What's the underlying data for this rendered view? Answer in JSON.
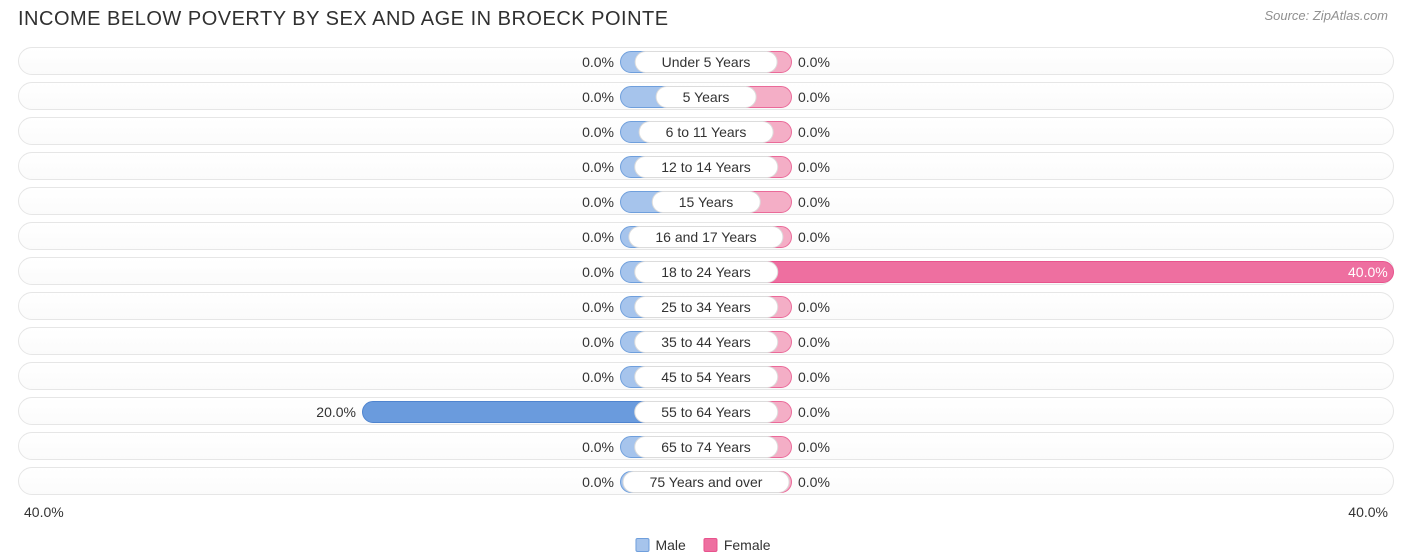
{
  "title": "INCOME BELOW POVERTY BY SEX AND AGE IN BROECK POINTE",
  "source": "Source: ZipAtlas.com",
  "chart": {
    "type": "diverging-bar",
    "axis_max_pct": 40.0,
    "axis_label_left": "40.0%",
    "axis_label_right": "40.0%",
    "min_bar_pct": 5.0,
    "colors": {
      "male_fill": "#a6c4ec",
      "male_border": "#6f9fdc",
      "female_fill": "#f4aec6",
      "female_border": "#ea6a99",
      "female_strong_fill": "#ee6fa0",
      "female_strong_border": "#e8538d",
      "male_strong_fill": "#6a9bdd",
      "male_strong_border": "#4f84cf",
      "track_border": "#e6e6e6",
      "text": "#333333",
      "title_text": "#303030",
      "source_text": "#909090",
      "inside_label": "#ffffff",
      "background": "#ffffff"
    },
    "left_series": "Male",
    "right_series": "Female",
    "categories": [
      {
        "label": "Under 5 Years",
        "male": 0.0,
        "female": 0.0
      },
      {
        "label": "5 Years",
        "male": 0.0,
        "female": 0.0
      },
      {
        "label": "6 to 11 Years",
        "male": 0.0,
        "female": 0.0
      },
      {
        "label": "12 to 14 Years",
        "male": 0.0,
        "female": 0.0
      },
      {
        "label": "15 Years",
        "male": 0.0,
        "female": 0.0
      },
      {
        "label": "16 and 17 Years",
        "male": 0.0,
        "female": 0.0
      },
      {
        "label": "18 to 24 Years",
        "male": 0.0,
        "female": 40.0
      },
      {
        "label": "25 to 34 Years",
        "male": 0.0,
        "female": 0.0
      },
      {
        "label": "35 to 44 Years",
        "male": 0.0,
        "female": 0.0
      },
      {
        "label": "45 to 54 Years",
        "male": 0.0,
        "female": 0.0
      },
      {
        "label": "55 to 64 Years",
        "male": 20.0,
        "female": 0.0
      },
      {
        "label": "65 to 74 Years",
        "male": 0.0,
        "female": 0.0
      },
      {
        "label": "75 Years and over",
        "male": 0.0,
        "female": 0.0
      }
    ],
    "legend": {
      "male": "Male",
      "female": "Female"
    }
  }
}
